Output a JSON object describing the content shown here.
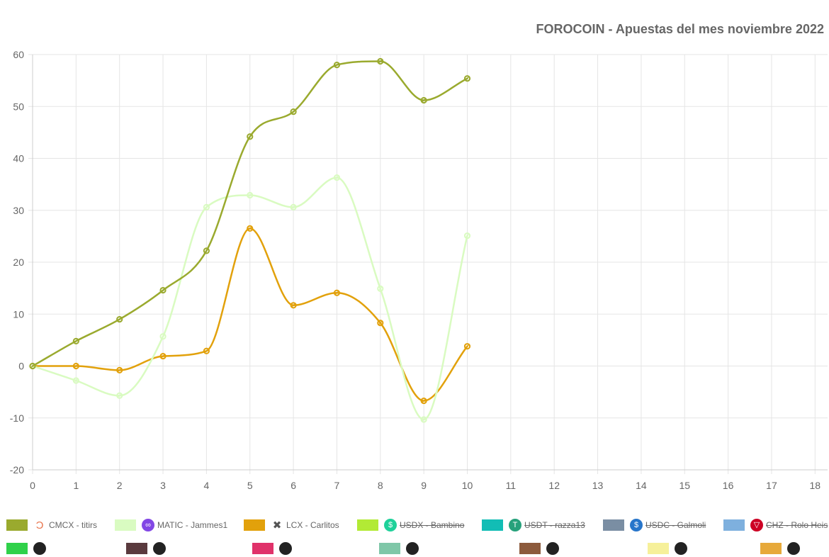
{
  "chart_data": {
    "type": "line",
    "title": "FOROCOIN - Apuestas del mes noviembre 2022",
    "x_categories": [
      "0",
      "1",
      "2",
      "3",
      "4",
      "5",
      "6",
      "7",
      "8",
      "9",
      "10",
      "11",
      "12",
      "13",
      "14",
      "15",
      "16",
      "17",
      "18"
    ],
    "y_ticks": [
      "60",
      "50",
      "40",
      "30",
      "20",
      "10",
      "0",
      "-10",
      "-20"
    ],
    "ylim": [
      -20,
      60
    ],
    "grid": true,
    "legend_position": "bottom",
    "series": [
      {
        "name": "CMCX - titirs",
        "color": "#9aaa2e",
        "icon": "cmcx-icon",
        "visible": true,
        "values": [
          0,
          4.8,
          9,
          14.6,
          22.2,
          44.2,
          49,
          58,
          58.7,
          51.2,
          55.4
        ]
      },
      {
        "name": "MATIC - Jammes1",
        "color": "#d9fbc1",
        "icon": "matic-icon",
        "visible": true,
        "values": [
          0,
          -2.8,
          -5.7,
          5.7,
          30.6,
          32.9,
          30.6,
          36.3,
          14.9,
          -10.3,
          25.1
        ]
      },
      {
        "name": "LCX - Carlitos",
        "color": "#e2a10b",
        "icon": "lcx-icon",
        "visible": true,
        "values": [
          0,
          0,
          -0.8,
          1.9,
          2.9,
          26.5,
          11.7,
          14.1,
          8.3,
          -6.7,
          3.8
        ]
      },
      {
        "name": "USDX - Bambino",
        "color": "#b2ea35",
        "icon": "usdx-icon",
        "visible": false,
        "values": []
      },
      {
        "name": "USDT - razza13",
        "color": "#12bdb5",
        "icon": "usdt-icon",
        "visible": false,
        "values": []
      },
      {
        "name": "USDC - Galmoli",
        "color": "#7a8ea3",
        "icon": "usdc-icon",
        "visible": false,
        "values": []
      },
      {
        "name": "CHZ - Rolo Heis",
        "color": "#7eb0de",
        "icon": "chz-icon",
        "visible": false,
        "values": []
      }
    ]
  },
  "legend_icons": {
    "cmcx-icon": {
      "glyph": "Ɔ",
      "bg": "#ffffff",
      "fg": "#e8734a"
    },
    "matic-icon": {
      "glyph": "∞",
      "bg": "#8247e5",
      "fg": "#ffffff"
    },
    "lcx-icon": {
      "glyph": "✖",
      "bg": "#ffffff",
      "fg": "#555555"
    },
    "usdx-icon": {
      "glyph": "$",
      "bg": "#1fd19a",
      "fg": "#ffffff"
    },
    "usdt-icon": {
      "glyph": "T",
      "bg": "#26a17b",
      "fg": "#ffffff"
    },
    "usdc-icon": {
      "glyph": "$",
      "bg": "#2775ca",
      "fg": "#ffffff"
    },
    "chz-icon": {
      "glyph": "▽",
      "bg": "#cd0124",
      "fg": "#ffffff"
    }
  },
  "legend_row2_colors": [
    "#30d14a",
    "#5a3a3e",
    "#e0326a",
    "#7fc7a8",
    "#8c5a3c",
    "#f6f09a",
    "#e7a93a"
  ]
}
